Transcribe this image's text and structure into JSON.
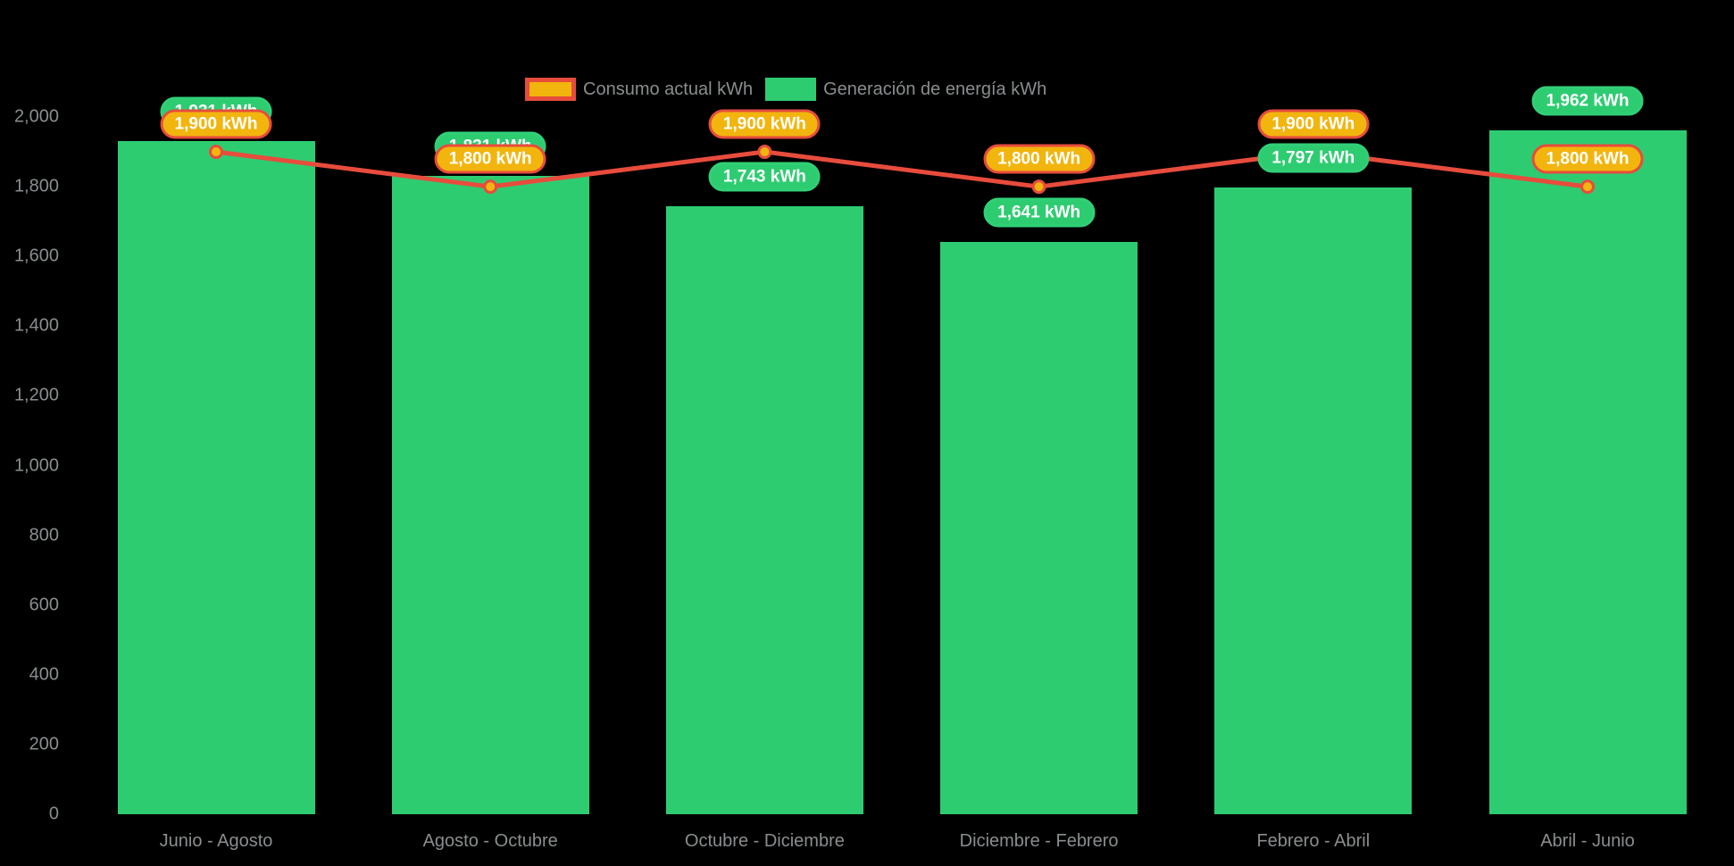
{
  "page": {
    "background_color": "#000000",
    "axis_text_color": "#8a8d8f"
  },
  "legend": {
    "position": "top",
    "items": [
      {
        "label": "Consumo actual kWh",
        "swatch_color": "#f2b50e",
        "swatch_border_color": "#e74c3c"
      },
      {
        "label": "Generación de energía kWh",
        "swatch_color": "#2ecc71"
      }
    ]
  },
  "chart_data": {
    "type": "bar",
    "subtype": "bar-with-line-overlay",
    "categories": [
      "Junio - Agosto",
      "Agosto - Octubre",
      "Octubre - Diciembre",
      "Diciembre - Febrero",
      "Febrero - Abril",
      "Abril - Junio"
    ],
    "series": [
      {
        "name": "Consumo actual kWh",
        "render": "line",
        "values": [
          1900,
          1800,
          1900,
          1800,
          1900,
          1800
        ],
        "line_color": "#e74c3c",
        "point_fill": "#f2b50e",
        "point_border": "#e74c3c",
        "label_style": "pill-consumo"
      },
      {
        "name": "Generación de energía kWh",
        "render": "bar",
        "values": [
          1931,
          1831,
          1743,
          1641,
          1797,
          1962
        ],
        "bar_color": "#2ecc71",
        "label_style": "pill-generacion"
      }
    ],
    "data_labels": {
      "consumo": [
        "1,900 kWh",
        "1,800 kWh",
        "1,900 kWh",
        "1,800 kWh",
        "1,900 kWh",
        "1,800 kWh"
      ],
      "generacion": [
        "1,931 kWh",
        "1,831 kWh",
        "1,743 kWh",
        "1,641 kWh",
        "1,797 kWh",
        "1,962 kWh"
      ]
    },
    "value_suffix": " kWh",
    "ylim": [
      0,
      2000
    ],
    "yticks": [
      0,
      200,
      400,
      600,
      800,
      1000,
      1200,
      1400,
      1600,
      1800,
      2000
    ],
    "ytick_labels": [
      "0",
      "200",
      "400",
      "600",
      "800",
      "1,000",
      "1,200",
      "1,400",
      "1,600",
      "1,800",
      "2,000"
    ],
    "grid": false,
    "legend_position": "top",
    "xlabel": "",
    "ylabel": ""
  }
}
